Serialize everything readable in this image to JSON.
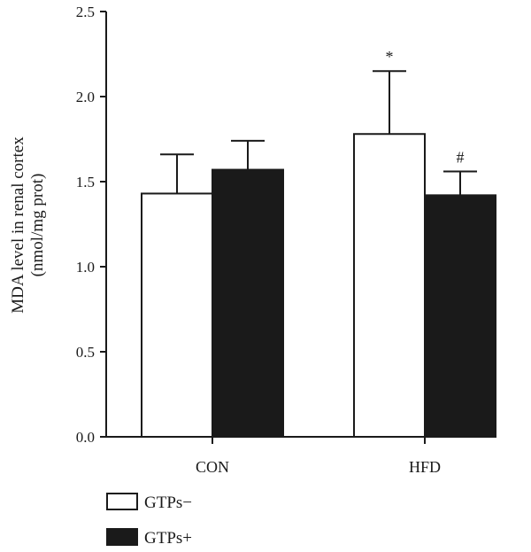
{
  "chart_data": {
    "type": "bar",
    "categories": [
      "CON",
      "HFD"
    ],
    "series": [
      {
        "name": "GTPs−",
        "values": [
          1.43,
          1.78
        ],
        "errors": [
          0.23,
          0.37
        ],
        "color": "#ffffff"
      },
      {
        "name": "GTPs+",
        "values": [
          1.57,
          1.42
        ],
        "errors": [
          0.17,
          0.14
        ],
        "color": "#1a1a1a"
      }
    ],
    "ylabel_lines": [
      "MDA level in renal cortex",
      "(nmol/mg prot)"
    ],
    "yticks": [
      "0.0",
      "0.5",
      "1.0",
      "1.5",
      "2.0",
      "2.5"
    ],
    "ylim": [
      0,
      2.5
    ],
    "annotations": [
      {
        "category": "HFD",
        "series": 0,
        "text": "*"
      },
      {
        "category": "HFD",
        "series": 1,
        "text": "#"
      }
    ],
    "legend_position": "bottom-left",
    "grid": false
  }
}
